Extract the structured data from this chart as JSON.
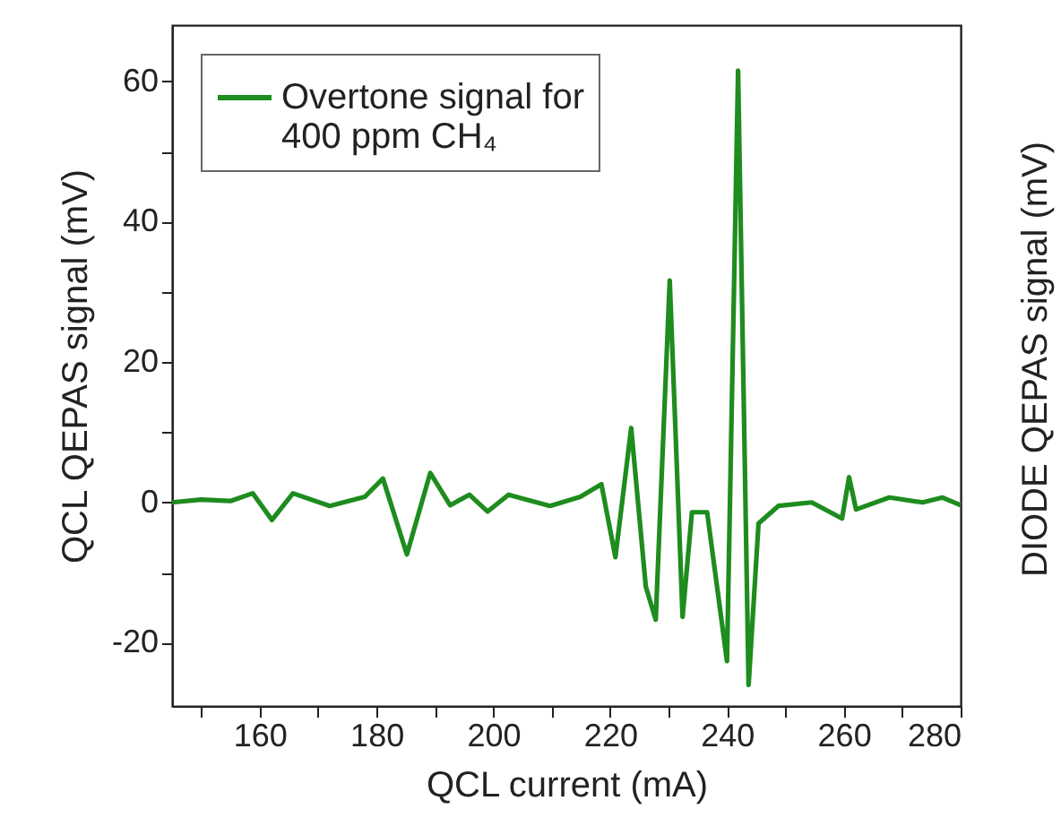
{
  "chart_data": {
    "type": "line",
    "xlabel": "QCL current (mA)",
    "ylabel": "QCL QEPAS signal (mV)",
    "y2label": "DIODE QEPAS signal (mV)",
    "xlim": [
      145,
      280
    ],
    "xticks": [
      {
        "value": 150,
        "label": null
      },
      160,
      {
        "value": 170,
        "label": null
      },
      180,
      {
        "value": 190,
        "label": null
      },
      200,
      {
        "value": 210,
        "label": null
      },
      220,
      {
        "value": 230,
        "label": null
      },
      240,
      {
        "value": 250,
        "label": null
      },
      260,
      {
        "value": 270,
        "label": null
      },
      280
    ],
    "ylim": [
      -29,
      68
    ],
    "yticks": [
      -20,
      {
        "value": -10,
        "label": null
      },
      0,
      {
        "value": 10,
        "label": null
      },
      20,
      {
        "value": 30,
        "label": null
      },
      40,
      {
        "value": 50,
        "label": null
      },
      60
    ],
    "grid": false,
    "legend": "top left",
    "series": [
      {
        "name": "Overtone signal for 400 ppm CH₄",
        "color": "#1e8c1e",
        "x": [
          145,
          150,
          155,
          158.8,
          162.1,
          165.7,
          172,
          178,
          181.1,
          185.2,
          189.2,
          192.6,
          195.9,
          199,
          202.6,
          209.7,
          214.9,
          218.5,
          220.9,
          223.6,
          226.1,
          227.8,
          230.2,
          232.4,
          234,
          236.6,
          240,
          241.9,
          243.7,
          245.4,
          248.8,
          254.5,
          259.7,
          260.9,
          262.1,
          267.8,
          273.5,
          276.9,
          280
        ],
        "values": [
          0,
          0.4,
          0.2,
          1.3,
          -2.5,
          1.3,
          -0.5,
          0.8,
          3.4,
          -7.4,
          4.2,
          -0.4,
          1.1,
          -1.3,
          1.1,
          -0.5,
          0.8,
          2.6,
          -7.8,
          10.6,
          -12.0,
          -16.7,
          31.6,
          -16.3,
          -1.4,
          -1.4,
          -22.6,
          61.5,
          -26,
          -3,
          -0.5,
          0,
          -2.3,
          3.6,
          -1,
          0.7,
          0,
          0.7,
          -0.4
        ]
      }
    ]
  }
}
